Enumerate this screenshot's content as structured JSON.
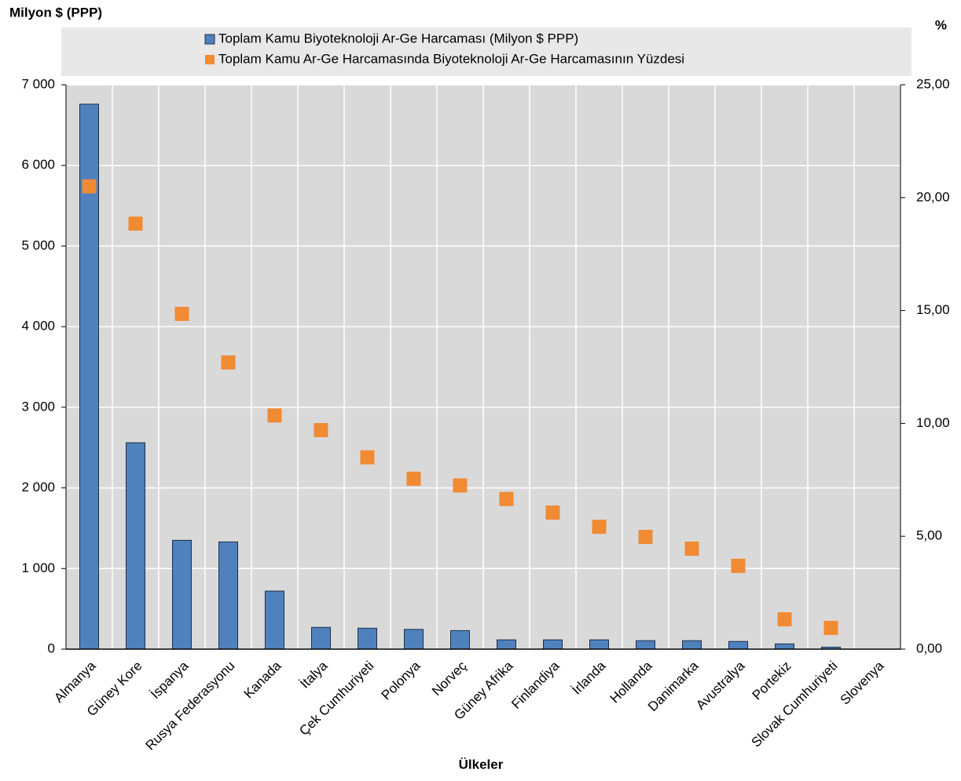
{
  "chart_data": {
    "type": "bar_scatter",
    "y_axis_label": "Milyon $ (PPP)",
    "y2_axis_label": "%",
    "x_axis_label": "Ülkeler",
    "categories": [
      "Almanya",
      "Güney Kore",
      "İspanya",
      "Rusya Federasyonu",
      "Kanada",
      "İtalya",
      "Çek Cumhuriyeti",
      "Polonya",
      "Norveç",
      "Güney Afrika",
      "Finlandiya",
      "İrlanda",
      "Hollanda",
      "Danimarka",
      "Avustralya",
      "Portekiz",
      "Slovak Cumhuriyeti",
      "Slovenya"
    ],
    "series": [
      {
        "name": "Toplam Kamu Biyoteknoloji Ar-Ge Harcaması (Milyon $ PPP)",
        "color": "#4f81bd",
        "type": "bar",
        "values": [
          6760,
          2560,
          1350,
          1330,
          720,
          270,
          260,
          245,
          230,
          115,
          115,
          115,
          105,
          105,
          95,
          65,
          25,
          0
        ]
      },
      {
        "name": "Toplam Kamu  Ar-Ge Harcamasında Biyoteknoloji  Ar-Ge Harcamasının Yüzdesi",
        "color": "#f08a33",
        "type": "scatter",
        "axis": "y2",
        "values": [
          20.5,
          18.85,
          14.85,
          12.7,
          10.35,
          9.7,
          8.5,
          7.55,
          7.25,
          6.65,
          6.05,
          5.42,
          4.97,
          4.45,
          3.69,
          1.32,
          0.94,
          null
        ]
      }
    ],
    "ylim": [
      0,
      7000
    ],
    "yticks": [
      0,
      {
        "value": 1000,
        "label": "1 000"
      },
      {
        "value": 2000,
        "label": "2 000"
      },
      {
        "value": 3000,
        "label": "3 000"
      },
      {
        "value": 4000,
        "label": "4 000"
      },
      {
        "value": 5000,
        "label": "5 000"
      },
      {
        "value": 6000,
        "label": "6 000"
      },
      {
        "value": 7000,
        "label": "7 000"
      }
    ],
    "y2lim": [
      0,
      25
    ],
    "y2ticks": [
      {
        "value": 0,
        "label": "0,00"
      },
      {
        "value": 5,
        "label": "5,00"
      },
      {
        "value": 10,
        "label": "10,00"
      },
      {
        "value": 15,
        "label": "15,00"
      },
      {
        "value": 20,
        "label": "20,00"
      },
      {
        "value": 25,
        "label": "25,00"
      }
    ],
    "grid": true
  }
}
